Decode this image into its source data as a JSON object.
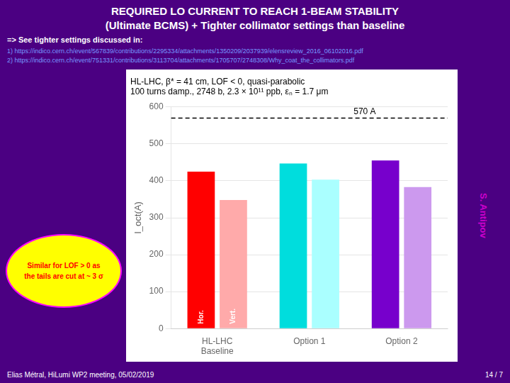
{
  "chart_data": {
    "type": "bar",
    "title": [
      "REQUIRED LO CURRENT TO REACH 1-BEAM STABILITY",
      "(Ultimate BCMS) + Tighter collimator settings than baseline"
    ],
    "subtitle": [
      "HL-LHC, β* = 41 cm, LOF < 0, quasi-parabolic",
      "100 turns damp., 2748 b, 2.3 × 10¹¹ ppb, εₙ = 1.7 μm"
    ],
    "categories": [
      "HL-LHC\nBaseline",
      "Option 1",
      "Option 2"
    ],
    "series": [
      {
        "name": "Hor.",
        "colors": [
          "#ff0000",
          "#00dddd",
          "#7700cc"
        ],
        "values": [
          425,
          447,
          455
        ]
      },
      {
        "name": "Vert.",
        "colors": [
          "#ffaaaa",
          "#aaffff",
          "#cc99ee"
        ],
        "values": [
          348,
          403,
          383
        ]
      }
    ],
    "ylabel": "I_oct(A)",
    "ylim": [
      0,
      600
    ],
    "yticks": [
      0,
      100,
      200,
      300,
      400,
      500,
      600
    ],
    "grid": true,
    "annotations": [
      {
        "text": "=> See tighter settings discussed in:"
      },
      {
        "text": "1)  https://indico.cern.ch/event/567839/contributions/2295334/attachments/1350209/2037939/elensreview_2016_06102016.pdf"
      },
      {
        "text": "2)  https://indico.cern.ch/event/751331/contributions/3113704/attachments/1705707/2748308/Why_coat_the_collimators.pdf"
      },
      {
        "text": "Similar for LOF > 0 as\nthe tails are cut at ~ 3 σ"
      },
      {
        "text": "S. Antipov"
      },
      {
        "text": "Elias Métral, HiLumi WP2 meeting, 05/02/2019"
      },
      {
        "text": "14 / 7"
      },
      {
        "y": 570,
        "text": "570 A"
      }
    ]
  }
}
